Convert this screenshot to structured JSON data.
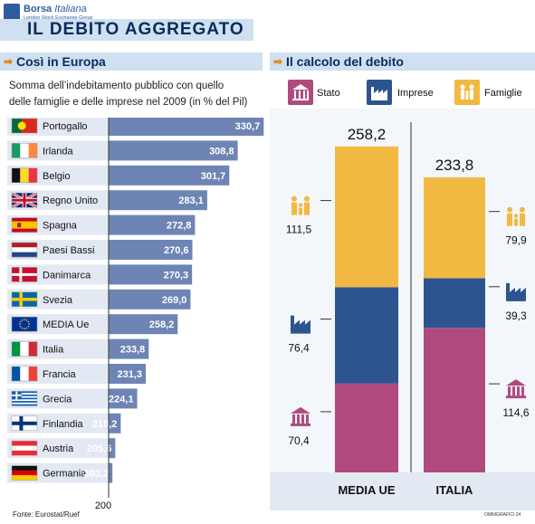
{
  "header": {
    "brand": "Borsa",
    "brand_italic": "Italiana",
    "brand_sub": "London Stock Exchange Group",
    "title": "IL DEBITO AGGREGATO"
  },
  "left_section": {
    "label": "Così in Europa",
    "subtitle_line1": "Somma dell’indebitamento pubblico con quello",
    "subtitle_line2": "delle famiglie e delle imprese nel 2009 (in % del Pil)"
  },
  "right_section": {
    "label": "Il calcolo del debito",
    "legend": [
      {
        "label": "Stato",
        "color": "#b04a7e",
        "icon": "bank-icon"
      },
      {
        "label": "Imprese",
        "color": "#2e5490",
        "icon": "factory-icon"
      },
      {
        "label": "Famiglie",
        "color": "#f2b942",
        "icon": "family-icon"
      }
    ]
  },
  "chart_data": [
    {
      "type": "bar",
      "orientation": "horizontal",
      "categories": [
        "Portogallo",
        "Irlanda",
        "Belgio",
        "Regno Unito",
        "Spagna",
        "Paesi Bassi",
        "Danimarca",
        "Svezia",
        "MEDIA Ue",
        "Italia",
        "Francia",
        "Grecia",
        "Finlandia",
        "Austria",
        "Germania"
      ],
      "values": [
        330.7,
        308.8,
        301.7,
        283.1,
        272.8,
        270.6,
        270.3,
        269.0,
        258.2,
        233.8,
        231.3,
        224.1,
        210.2,
        205.6,
        203.2
      ],
      "value_labels": [
        "330,7",
        "308,8",
        "301,7",
        "283,1",
        "272,8",
        "270,6",
        "270,3",
        "269,0",
        "258,2",
        "233,8",
        "231,3",
        "224,1",
        "210,2",
        "205,6",
        "203,2"
      ],
      "flags": [
        "portugal",
        "ireland",
        "belgium",
        "uk",
        "spain",
        "netherlands",
        "denmark",
        "sweden",
        "eu",
        "italy",
        "france",
        "greece",
        "finland",
        "austria",
        "germany"
      ],
      "xlim": [
        200,
        332
      ],
      "axis_tick_label": "200",
      "bar_color": "#6e84b4"
    },
    {
      "type": "bar",
      "stacked": true,
      "categories": [
        "MEDIA UE",
        "ITALIA"
      ],
      "totals": [
        258.2,
        233.8
      ],
      "total_labels": [
        "258,2",
        "233,8"
      ],
      "series": [
        {
          "name": "Stato",
          "values": [
            70.4,
            114.6
          ],
          "labels": [
            "70,4",
            "114,6"
          ],
          "color": "#b04a7e"
        },
        {
          "name": "Imprese",
          "values": [
            76.4,
            39.3
          ],
          "labels": [
            "76,4",
            "39,3"
          ],
          "color": "#2e5490"
        },
        {
          "name": "Famiglie",
          "values": [
            111.5,
            79.9
          ],
          "labels": [
            "111,5",
            "79,9"
          ],
          "color": "#f2b942"
        }
      ],
      "ylim": [
        0,
        258.2
      ]
    }
  ],
  "footer": {
    "source": "Fonte: Eurostat/Ruef",
    "credit": "OMNIGRAFICI.24"
  }
}
